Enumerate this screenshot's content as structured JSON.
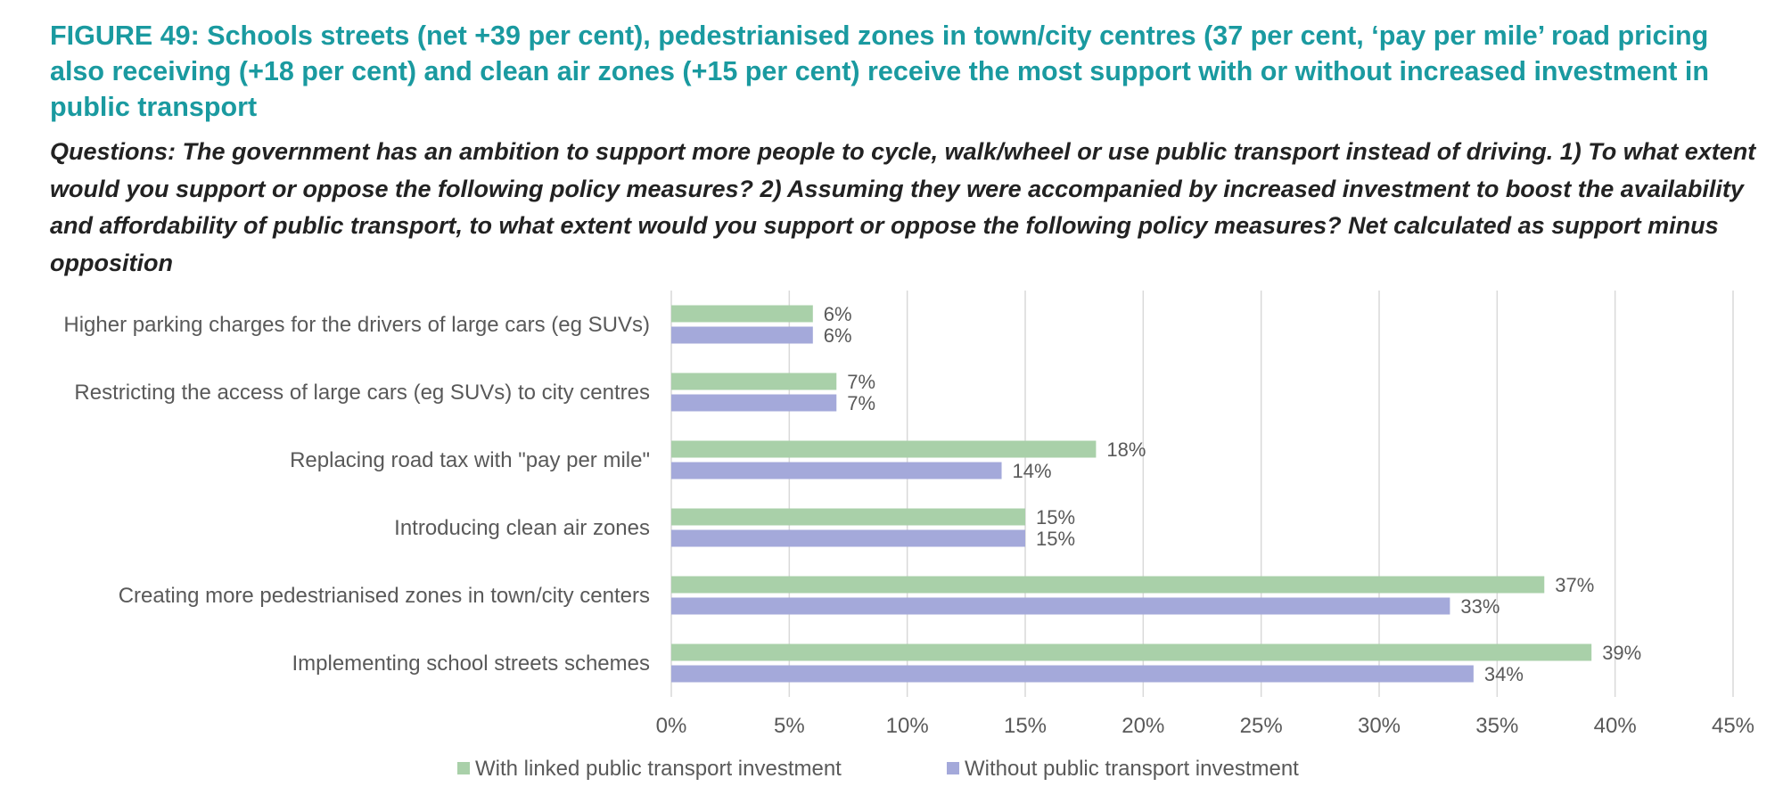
{
  "title": "FIGURE 49: Schools streets (net +39 per cent), pedestrianised zones in town/city centres (37 per cent, ‘pay per mile’ road pricing also receiving (+18 per cent) and clean air zones (+15 per cent) receive the most support with or without increased investment in public transport",
  "subtitle": "Questions: The government has an ambition to support more people to cycle, walk/wheel or use public transport instead of driving. 1) To what extent would you support or oppose the following policy measures? 2) Assuming they were accompanied by increased investment to boost the availability and affordability of public transport, to what extent would you support or oppose the following policy measures? Net calculated as support minus opposition",
  "chart_data": {
    "type": "bar",
    "orientation": "horizontal",
    "categories": [
      "Higher parking charges for the drivers of large cars (eg SUVs)",
      "Restricting the access of large cars (eg SUVs) to city centres",
      "Replacing road tax with \"pay per mile\"",
      "Introducing clean air zones",
      "Creating more pedestrianised zones in town/city centers",
      "Implementing school streets schemes"
    ],
    "series": [
      {
        "name": "With linked public transport investment",
        "color": "#a9d0a9",
        "values": [
          6,
          7,
          18,
          15,
          37,
          39
        ],
        "labels": [
          "6%",
          "7%",
          "18%",
          "15%",
          "37%",
          "39%"
        ]
      },
      {
        "name": "Without public transport investment",
        "color": "#a4a9da",
        "values": [
          6,
          7,
          14,
          15,
          33,
          34
        ],
        "labels": [
          "6%",
          "7%",
          "14%",
          "15%",
          "33%",
          "34%"
        ]
      }
    ],
    "xlim": [
      0,
      45
    ],
    "ticks": [
      0,
      5,
      10,
      15,
      20,
      25,
      30,
      35,
      40,
      45
    ],
    "tick_labels": [
      "0%",
      "5%",
      "10%",
      "15%",
      "20%",
      "25%",
      "30%",
      "35%",
      "40%",
      "45%"
    ],
    "grid": true,
    "legend_position": "bottom"
  }
}
